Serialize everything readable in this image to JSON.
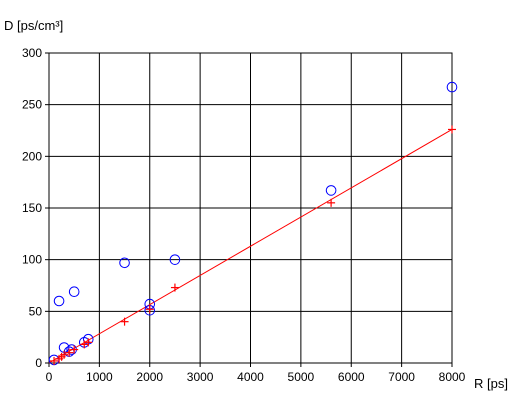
{
  "chart_data": {
    "type": "scatter",
    "title": "",
    "xlabel": "R [ps]",
    "ylabel": "D [ps/cm³]",
    "xlim": [
      0,
      8000
    ],
    "ylim": [
      0,
      300
    ],
    "x_ticks": [
      "0",
      "1000",
      "2000",
      "3000",
      "4000",
      "5000",
      "6000",
      "7000",
      "8000"
    ],
    "y_ticks": [
      "0",
      "50",
      "100",
      "150",
      "200",
      "250",
      "300"
    ],
    "grid": true,
    "legend": "none",
    "series": [
      {
        "marker": "circle",
        "color": "#0000ff",
        "points": [
          {
            "x": 100,
            "y": 3
          },
          {
            "x": 200,
            "y": 60
          },
          {
            "x": 300,
            "y": 15
          },
          {
            "x": 400,
            "y": 11
          },
          {
            "x": 450,
            "y": 13
          },
          {
            "x": 500,
            "y": 69
          },
          {
            "x": 700,
            "y": 20
          },
          {
            "x": 780,
            "y": 23
          },
          {
            "x": 1500,
            "y": 97
          },
          {
            "x": 2000,
            "y": 57
          },
          {
            "x": 2000,
            "y": 51
          },
          {
            "x": 2500,
            "y": 100
          },
          {
            "x": 5600,
            "y": 167
          },
          {
            "x": 8000,
            "y": 267
          }
        ]
      },
      {
        "marker": "plus",
        "color": "#ff0000",
        "points": [
          {
            "x": 100,
            "y": 2
          },
          {
            "x": 200,
            "y": 4
          },
          {
            "x": 250,
            "y": 6
          },
          {
            "x": 300,
            "y": 8
          },
          {
            "x": 400,
            "y": 10
          },
          {
            "x": 500,
            "y": 13
          },
          {
            "x": 700,
            "y": 18
          },
          {
            "x": 780,
            "y": 20
          },
          {
            "x": 1500,
            "y": 40
          },
          {
            "x": 2000,
            "y": 52
          },
          {
            "x": 2500,
            "y": 73
          },
          {
            "x": 5600,
            "y": 155
          },
          {
            "x": 8000,
            "y": 226
          }
        ]
      }
    ],
    "trendline": {
      "color": "#ff0000",
      "x": [
        0,
        8000
      ],
      "y": [
        0,
        226
      ]
    }
  }
}
